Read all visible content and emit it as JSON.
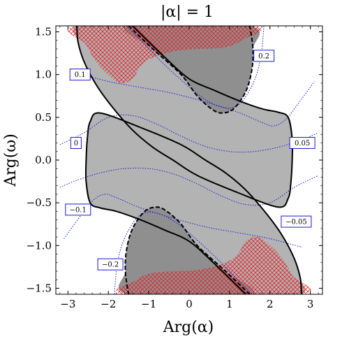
{
  "chart_data": {
    "type": "contour",
    "title": "|α| = 1",
    "xlabel": "Arg(α)",
    "ylabel": "Arg(ω)",
    "xlim": [
      -3.3,
      3.3
    ],
    "ylim": [
      -1.57,
      1.57
    ],
    "x_ticks": [
      -3,
      -2,
      -1,
      0,
      1,
      2,
      3
    ],
    "x_tick_labels": [
      "−3",
      "−2",
      "−1",
      "0",
      "1",
      "2",
      "3"
    ],
    "y_ticks": [
      -1.5,
      -1.0,
      -0.5,
      0.0,
      0.5,
      1.0,
      1.5
    ],
    "y_tick_labels": [
      "−1.5",
      "−1.0",
      "−0.5",
      "0.0",
      "0.5",
      "1.0",
      "1.5"
    ],
    "grid": false,
    "legend": "none",
    "colors": {
      "light_region": "#b3b3b3",
      "dark_region": "#8f8f8f",
      "hatch": "#e2262b",
      "dotted_contour": "#1a1ad6",
      "label_border": "#1a1ad6"
    },
    "regions": [
      {
        "kind": "light",
        "boundary": [
          [
            -1.4,
            1.57
          ],
          [
            -0.6,
            1.2
          ],
          [
            0.0,
            0.95
          ],
          [
            0.6,
            0.82
          ],
          [
            1.2,
            0.7
          ],
          [
            1.8,
            0.6
          ],
          [
            2.2,
            0.56
          ],
          [
            2.45,
            0.5
          ],
          [
            2.55,
            0.25
          ],
          [
            2.55,
            0.0
          ],
          [
            2.52,
            -0.25
          ],
          [
            2.45,
            -0.45
          ],
          [
            2.2,
            -0.55
          ],
          [
            1.2,
            -0.38
          ],
          [
            0.2,
            -0.18
          ],
          [
            -0.4,
            0.0
          ],
          [
            -0.9,
            0.15
          ],
          [
            -1.4,
            0.35
          ],
          [
            -1.9,
            0.62
          ],
          [
            -2.3,
            0.88
          ],
          [
            -2.6,
            1.15
          ],
          [
            -2.75,
            1.38
          ],
          [
            -2.78,
            1.57
          ]
        ]
      },
      {
        "kind": "dark",
        "boundary": [
          [
            -1.5,
            1.57
          ],
          [
            -0.9,
            1.3
          ],
          [
            -0.2,
            1.0
          ],
          [
            0.2,
            0.75
          ],
          [
            0.55,
            0.6
          ],
          [
            0.8,
            0.55
          ],
          [
            1.1,
            0.6
          ],
          [
            1.4,
            0.8
          ],
          [
            1.55,
            1.05
          ],
          [
            1.58,
            1.3
          ],
          [
            1.5,
            1.57
          ]
        ]
      },
      {
        "kind": "light",
        "boundary": [
          [
            1.4,
            -1.57
          ],
          [
            0.6,
            -1.2
          ],
          [
            0.0,
            -0.95
          ],
          [
            -0.6,
            -0.82
          ],
          [
            -1.2,
            -0.7
          ],
          [
            -1.8,
            -0.6
          ],
          [
            -2.2,
            -0.56
          ],
          [
            -2.45,
            -0.5
          ],
          [
            -2.55,
            -0.25
          ],
          [
            -2.55,
            0.0
          ],
          [
            -2.52,
            0.25
          ],
          [
            -2.45,
            0.45
          ],
          [
            -2.2,
            0.55
          ],
          [
            -1.2,
            0.38
          ],
          [
            -0.2,
            0.18
          ],
          [
            0.4,
            0.0
          ],
          [
            0.9,
            -0.15
          ],
          [
            1.4,
            -0.35
          ],
          [
            1.9,
            -0.62
          ],
          [
            2.3,
            -0.88
          ],
          [
            2.6,
            -1.15
          ],
          [
            2.75,
            -1.38
          ],
          [
            2.78,
            -1.57
          ]
        ]
      },
      {
        "kind": "dark",
        "boundary": [
          [
            1.5,
            -1.57
          ],
          [
            0.9,
            -1.3
          ],
          [
            0.2,
            -1.0
          ],
          [
            -0.2,
            -0.75
          ],
          [
            -0.55,
            -0.6
          ],
          [
            -0.8,
            -0.55
          ],
          [
            -1.1,
            -0.6
          ],
          [
            -1.4,
            -0.8
          ],
          [
            -1.55,
            -1.05
          ],
          [
            -1.58,
            -1.3
          ],
          [
            -1.5,
            -1.57
          ]
        ]
      }
    ],
    "hatched_regions": [
      {
        "boundary": [
          [
            -2.75,
            1.57
          ],
          [
            -2.55,
            1.35
          ],
          [
            -2.3,
            1.15
          ],
          [
            -2.0,
            1.0
          ],
          [
            -1.7,
            0.9
          ],
          [
            -1.4,
            0.95
          ],
          [
            -1.2,
            1.1
          ],
          [
            -0.9,
            1.2
          ],
          [
            -0.3,
            1.28
          ],
          [
            0.3,
            1.3
          ],
          [
            0.9,
            1.32
          ],
          [
            1.3,
            1.4
          ],
          [
            1.55,
            1.57
          ]
        ]
      },
      {
        "boundary": [
          [
            2.75,
            -1.57
          ],
          [
            2.55,
            -1.35
          ],
          [
            2.3,
            -1.15
          ],
          [
            2.0,
            -1.0
          ],
          [
            1.7,
            -0.9
          ],
          [
            1.4,
            -0.95
          ],
          [
            1.2,
            -1.1
          ],
          [
            0.9,
            -1.2
          ],
          [
            0.3,
            -1.28
          ],
          [
            -0.3,
            -1.3
          ],
          [
            -0.9,
            -1.32
          ],
          [
            -1.3,
            -1.4
          ],
          [
            -1.55,
            -1.57
          ]
        ]
      }
    ],
    "solid_contours": [
      {
        "points": [
          [
            -1.4,
            1.57
          ],
          [
            -0.6,
            1.2
          ],
          [
            0.0,
            0.95
          ],
          [
            0.6,
            0.82
          ],
          [
            1.2,
            0.7
          ],
          [
            1.8,
            0.6
          ],
          [
            2.2,
            0.56
          ],
          [
            2.45,
            0.5
          ],
          [
            2.55,
            0.25
          ],
          [
            2.55,
            0.0
          ],
          [
            2.52,
            -0.25
          ],
          [
            2.45,
            -0.45
          ],
          [
            2.2,
            -0.55
          ],
          [
            1.2,
            -0.38
          ],
          [
            0.2,
            -0.18
          ],
          [
            -0.4,
            0.0
          ],
          [
            -0.9,
            0.15
          ],
          [
            -1.4,
            0.35
          ],
          [
            -1.9,
            0.62
          ],
          [
            -2.3,
            0.88
          ],
          [
            -2.6,
            1.15
          ],
          [
            -2.75,
            1.38
          ],
          [
            -2.78,
            1.57
          ]
        ]
      },
      {
        "points": [
          [
            1.4,
            -1.57
          ],
          [
            0.6,
            -1.2
          ],
          [
            0.0,
            -0.95
          ],
          [
            -0.6,
            -0.82
          ],
          [
            -1.2,
            -0.7
          ],
          [
            -1.8,
            -0.6
          ],
          [
            -2.2,
            -0.56
          ],
          [
            -2.45,
            -0.5
          ],
          [
            -2.55,
            -0.25
          ],
          [
            -2.55,
            0.0
          ],
          [
            -2.52,
            0.25
          ],
          [
            -2.45,
            0.45
          ],
          [
            -2.2,
            0.55
          ],
          [
            -1.2,
            0.38
          ],
          [
            -0.2,
            0.18
          ],
          [
            0.4,
            0.0
          ],
          [
            0.9,
            -0.15
          ],
          [
            1.4,
            -0.35
          ],
          [
            1.9,
            -0.62
          ],
          [
            2.3,
            -0.88
          ],
          [
            2.6,
            -1.15
          ],
          [
            2.75,
            -1.38
          ],
          [
            2.78,
            -1.57
          ]
        ]
      }
    ],
    "dashed_contours": [
      {
        "points": [
          [
            -1.5,
            1.57
          ],
          [
            -0.9,
            1.3
          ],
          [
            -0.2,
            1.0
          ],
          [
            0.2,
            0.75
          ],
          [
            0.55,
            0.6
          ],
          [
            0.8,
            0.55
          ],
          [
            1.1,
            0.6
          ],
          [
            1.4,
            0.8
          ],
          [
            1.55,
            1.05
          ],
          [
            1.58,
            1.3
          ],
          [
            1.5,
            1.57
          ]
        ]
      },
      {
        "points": [
          [
            1.5,
            -1.57
          ],
          [
            0.9,
            -1.3
          ],
          [
            0.2,
            -1.0
          ],
          [
            -0.2,
            -0.75
          ],
          [
            -0.55,
            -0.6
          ],
          [
            -0.8,
            -0.55
          ],
          [
            -1.1,
            -0.6
          ],
          [
            -1.4,
            -0.8
          ],
          [
            -1.55,
            -1.05
          ],
          [
            -1.58,
            -1.3
          ],
          [
            -1.5,
            -1.57
          ]
        ]
      }
    ],
    "dotted_contours": [
      {
        "points": [
          [
            -1.55,
            1.57
          ],
          [
            -0.9,
            1.25
          ],
          [
            -0.3,
            0.98
          ],
          [
            0.3,
            0.74
          ],
          [
            0.8,
            0.62
          ],
          [
            1.2,
            0.64
          ],
          [
            1.5,
            0.82
          ],
          [
            1.7,
            1.05
          ],
          [
            1.8,
            1.3
          ],
          [
            1.85,
            1.57
          ]
        ]
      },
      {
        "points": [
          [
            -2.8,
            1.02
          ],
          [
            -2.0,
            0.92
          ],
          [
            -1.2,
            0.85
          ],
          [
            -0.4,
            0.78
          ],
          [
            0.4,
            0.68
          ],
          [
            1.2,
            0.56
          ],
          [
            1.8,
            0.44
          ],
          [
            2.1,
            0.4
          ],
          [
            2.4,
            0.48
          ],
          [
            2.7,
            0.66
          ],
          [
            3.1,
            0.92
          ]
        ]
      },
      {
        "points": [
          [
            -3.2,
            0.18
          ],
          [
            -2.6,
            0.32
          ],
          [
            -2.0,
            0.5
          ],
          [
            -1.4,
            0.52
          ],
          [
            -0.8,
            0.42
          ],
          [
            -0.2,
            0.28
          ],
          [
            0.4,
            0.16
          ],
          [
            1.0,
            0.1
          ],
          [
            1.6,
            0.1
          ],
          [
            2.2,
            0.15
          ],
          [
            2.8,
            0.24
          ],
          [
            3.2,
            0.32
          ]
        ]
      },
      {
        "points": [
          [
            -3.2,
            -0.32
          ],
          [
            -2.8,
            -0.24
          ],
          [
            -2.2,
            -0.15
          ],
          [
            -1.6,
            -0.1
          ],
          [
            -1.0,
            -0.1
          ],
          [
            -0.4,
            -0.16
          ],
          [
            0.2,
            -0.28
          ],
          [
            0.8,
            -0.42
          ],
          [
            1.4,
            -0.52
          ],
          [
            2.0,
            -0.5
          ],
          [
            2.6,
            -0.32
          ],
          [
            3.2,
            -0.18
          ]
        ]
      },
      {
        "points": [
          [
            -3.1,
            -0.92
          ],
          [
            -2.7,
            -0.66
          ],
          [
            -2.4,
            -0.48
          ],
          [
            -2.1,
            -0.4
          ],
          [
            -1.8,
            -0.44
          ],
          [
            -1.2,
            -0.56
          ],
          [
            -0.4,
            -0.68
          ],
          [
            0.4,
            -0.78
          ],
          [
            1.2,
            -0.85
          ],
          [
            2.0,
            -0.92
          ],
          [
            2.8,
            -1.02
          ]
        ]
      },
      {
        "points": [
          [
            1.55,
            -1.57
          ],
          [
            0.9,
            -1.25
          ],
          [
            0.3,
            -0.98
          ],
          [
            -0.3,
            -0.74
          ],
          [
            -0.8,
            -0.62
          ],
          [
            -1.2,
            -0.64
          ],
          [
            -1.5,
            -0.82
          ],
          [
            -1.7,
            -1.05
          ],
          [
            -1.8,
            -1.3
          ],
          [
            -1.85,
            -1.57
          ]
        ]
      }
    ],
    "contour_labels": [
      {
        "text": "0.1",
        "x": -2.7,
        "y": 1.0
      },
      {
        "text": "0.2",
        "x": 1.85,
        "y": 1.22
      },
      {
        "text": "0",
        "x": -2.8,
        "y": 0.2
      },
      {
        "text": "0.05",
        "x": 2.8,
        "y": 0.2
      },
      {
        "text": "−0.1",
        "x": -2.75,
        "y": -0.58
      },
      {
        "text": "−0.05",
        "x": 2.65,
        "y": -0.72
      },
      {
        "text": "−0.2",
        "x": -1.95,
        "y": -1.22
      }
    ]
  }
}
